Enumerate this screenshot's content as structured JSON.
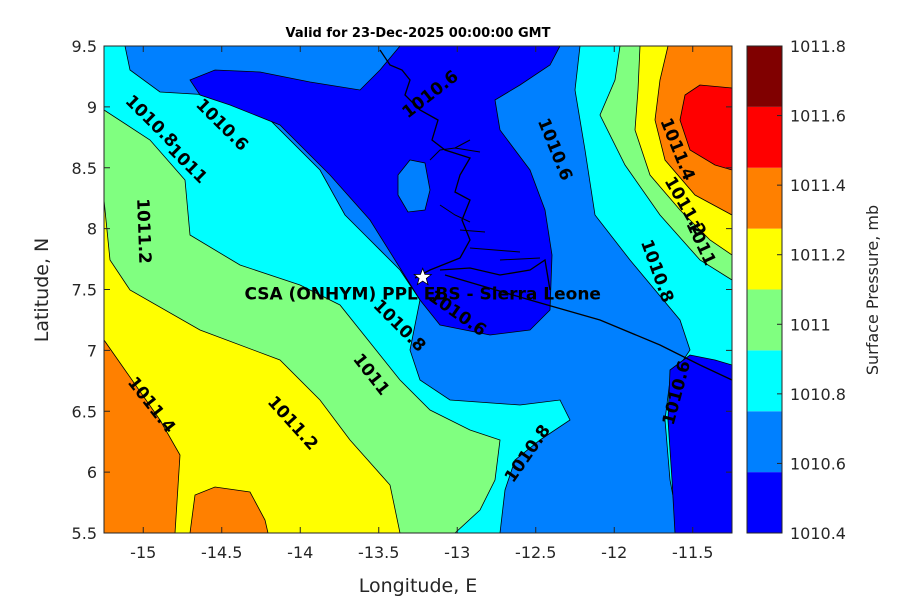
{
  "title": "Valid for 23-Dec-2025 00:00:00 GMT",
  "map": {
    "xlabel": "Longitude, E",
    "ylabel": "Latitude, N",
    "x_ticks": [
      "-15",
      "-14.5",
      "-14",
      "-13.5",
      "-13",
      "-12.5",
      "-12",
      "-11.5"
    ],
    "y_ticks": [
      "9.5",
      "9",
      "8.5",
      "8",
      "7.5",
      "7",
      "6.5",
      "6",
      "5.5"
    ],
    "xlim": [
      -15.25,
      -11.25
    ],
    "ylim": [
      5.5,
      9.5
    ],
    "station": {
      "label": "CSA (ONHYM) PPL EBS  - Sierra Leone",
      "lon": -13.22,
      "lat": 7.6,
      "marker": "star-icon"
    },
    "contour_labels": [
      {
        "text": "1010.8",
        "lon": -14.95,
        "lat": 8.88,
        "angle": 45
      },
      {
        "text": "1010.6",
        "lon": -14.5,
        "lat": 8.85,
        "angle": 45
      },
      {
        "text": "1011",
        "lon": -14.72,
        "lat": 8.53,
        "angle": 45
      },
      {
        "text": "1011.2",
        "lon": -15.0,
        "lat": 7.98,
        "angle": 88
      },
      {
        "text": "1010.6",
        "lon": -13.17,
        "lat": 9.1,
        "angle": -38
      },
      {
        "text": "1010.6",
        "lon": -12.38,
        "lat": 8.65,
        "angle": 68
      },
      {
        "text": "1011.4",
        "lon": -11.6,
        "lat": 8.65,
        "angle": 68
      },
      {
        "text": "1011.2",
        "lon": -11.55,
        "lat": 8.18,
        "angle": 60
      },
      {
        "text": "1011",
        "lon": -11.45,
        "lat": 7.88,
        "angle": 65
      },
      {
        "text": "1010.8",
        "lon": -11.73,
        "lat": 7.65,
        "angle": 70
      },
      {
        "text": "1010.8",
        "lon": -13.37,
        "lat": 7.2,
        "angle": 45
      },
      {
        "text": "1010.6",
        "lon": -13.0,
        "lat": 7.3,
        "angle": 35
      },
      {
        "text": "1011",
        "lon": -13.55,
        "lat": 6.8,
        "angle": 52
      },
      {
        "text": "1011.4",
        "lon": -14.95,
        "lat": 6.55,
        "angle": 52
      },
      {
        "text": "1011.2",
        "lon": -14.05,
        "lat": 6.4,
        "angle": 48
      },
      {
        "text": "1010.8",
        "lon": -12.55,
        "lat": 6.15,
        "angle": -55
      },
      {
        "text": "1010.6",
        "lon": -11.6,
        "lat": 6.65,
        "angle": -75
      }
    ]
  },
  "colorbar": {
    "label": "Surface Pressure, mb",
    "levels": [
      "1010.4",
      "1010.6",
      "1010.8",
      "1011",
      "1011.2",
      "1011.4",
      "1011.6",
      "1011.8"
    ],
    "colors": [
      "#0000ff",
      "#0080ff",
      "#00ffff",
      "#80ff80",
      "#ffff00",
      "#ff8000",
      "#ff0000",
      "#800000"
    ]
  },
  "chart_data": {
    "type": "heatmap",
    "title": "Valid for 23-Dec-2025 00:00:00 GMT",
    "xlabel": "Longitude, E",
    "ylabel": "Latitude, N",
    "xlim": [
      -15.25,
      -11.25
    ],
    "ylim": [
      5.5,
      9.5
    ],
    "colorbar_label": "Surface Pressure, mb",
    "levels": [
      1010.4,
      1010.6,
      1010.8,
      1011.0,
      1011.2,
      1011.4,
      1011.6,
      1011.8
    ],
    "grid": false,
    "legend": "right"
  }
}
